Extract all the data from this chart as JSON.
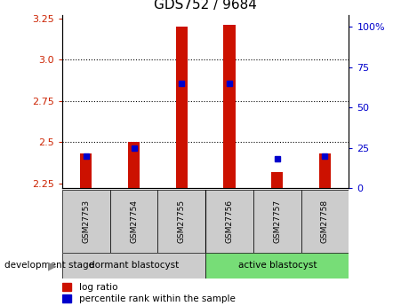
{
  "title": "GDS752 / 9684",
  "categories": [
    "GSM27753",
    "GSM27754",
    "GSM27755",
    "GSM27756",
    "GSM27757",
    "GSM27758"
  ],
  "baseline": 2.22,
  "bar_tops": [
    2.43,
    2.5,
    3.2,
    3.21,
    2.32,
    2.43
  ],
  "percentile_ranks": [
    20,
    25,
    65,
    65,
    18,
    20
  ],
  "ylim_left": [
    2.22,
    3.27
  ],
  "yticks_left": [
    2.25,
    2.5,
    2.75,
    3.0,
    3.25
  ],
  "ylim_right": [
    0,
    107
  ],
  "yticks_right": [
    0,
    25,
    50,
    75,
    100
  ],
  "yticklabels_right": [
    "0",
    "25",
    "50",
    "75",
    "100%"
  ],
  "bar_color": "#cc1100",
  "blue_color": "#0000cc",
  "group1_label": "dormant blastocyst",
  "group2_label": "active blastocyst",
  "group1_color": "#cccccc",
  "group2_color": "#77dd77",
  "dev_stage_label": "development stage",
  "legend_log_ratio": "log ratio",
  "legend_percentile": "percentile rank within the sample",
  "title_fontsize": 11,
  "tick_fontsize": 8,
  "bar_width": 0.25,
  "blue_marker_size": 5,
  "bg_color": "#ffffff"
}
